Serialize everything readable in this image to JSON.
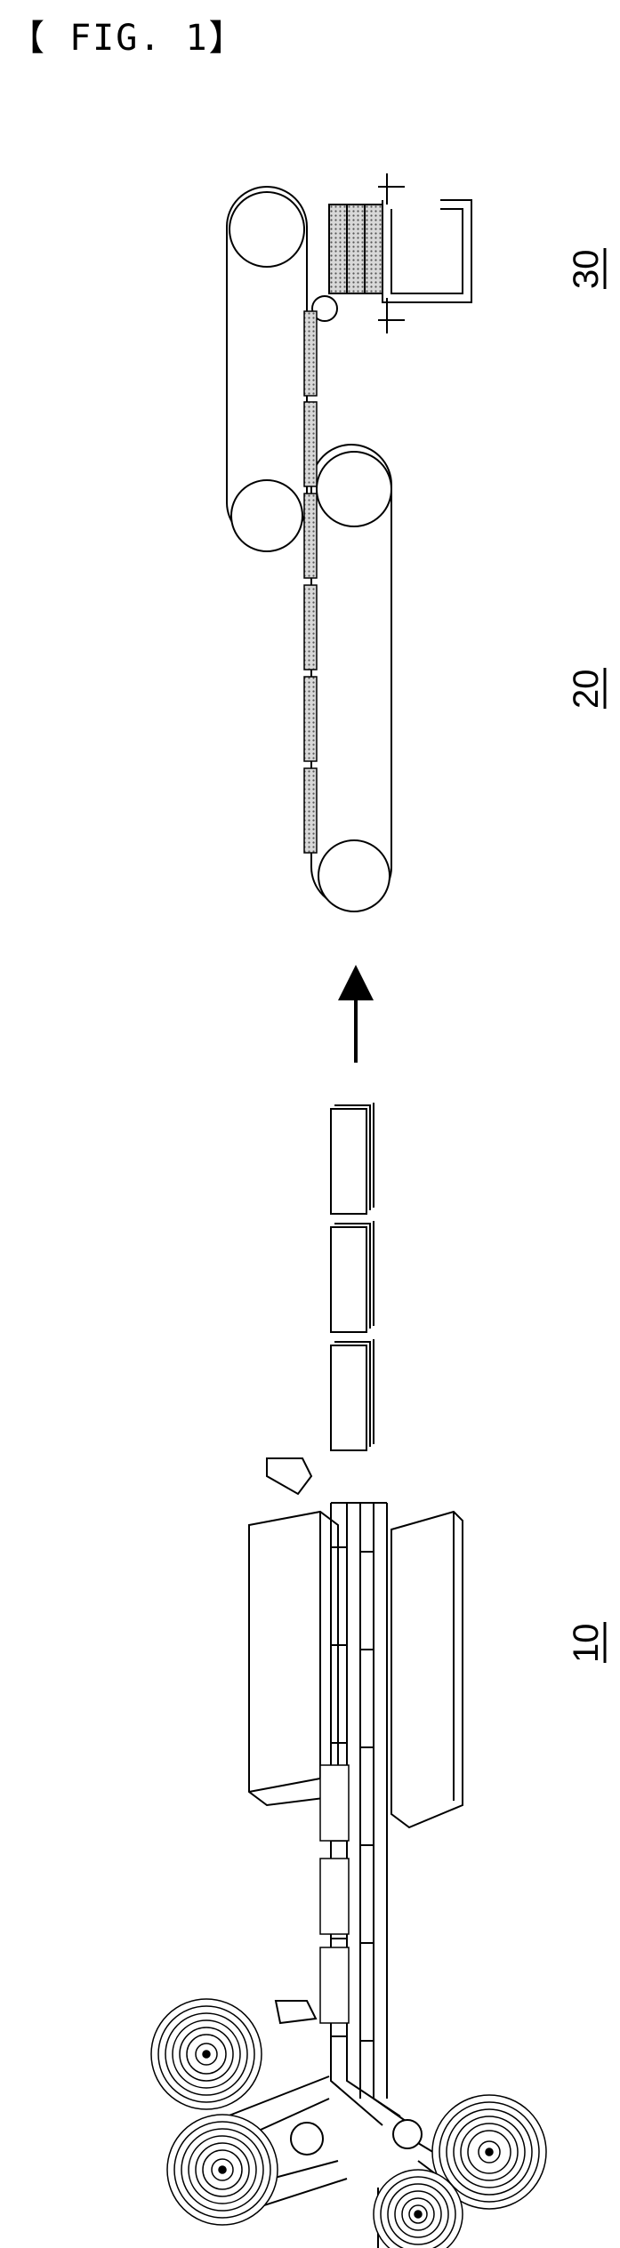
{
  "figure": {
    "title": "【 FIG. 1】"
  },
  "labels": {
    "section_30": "30",
    "section_20": "20",
    "section_10": "10"
  },
  "colors": {
    "line": "#000000",
    "hatch": "#7a7a7a",
    "background": "#ffffff"
  }
}
